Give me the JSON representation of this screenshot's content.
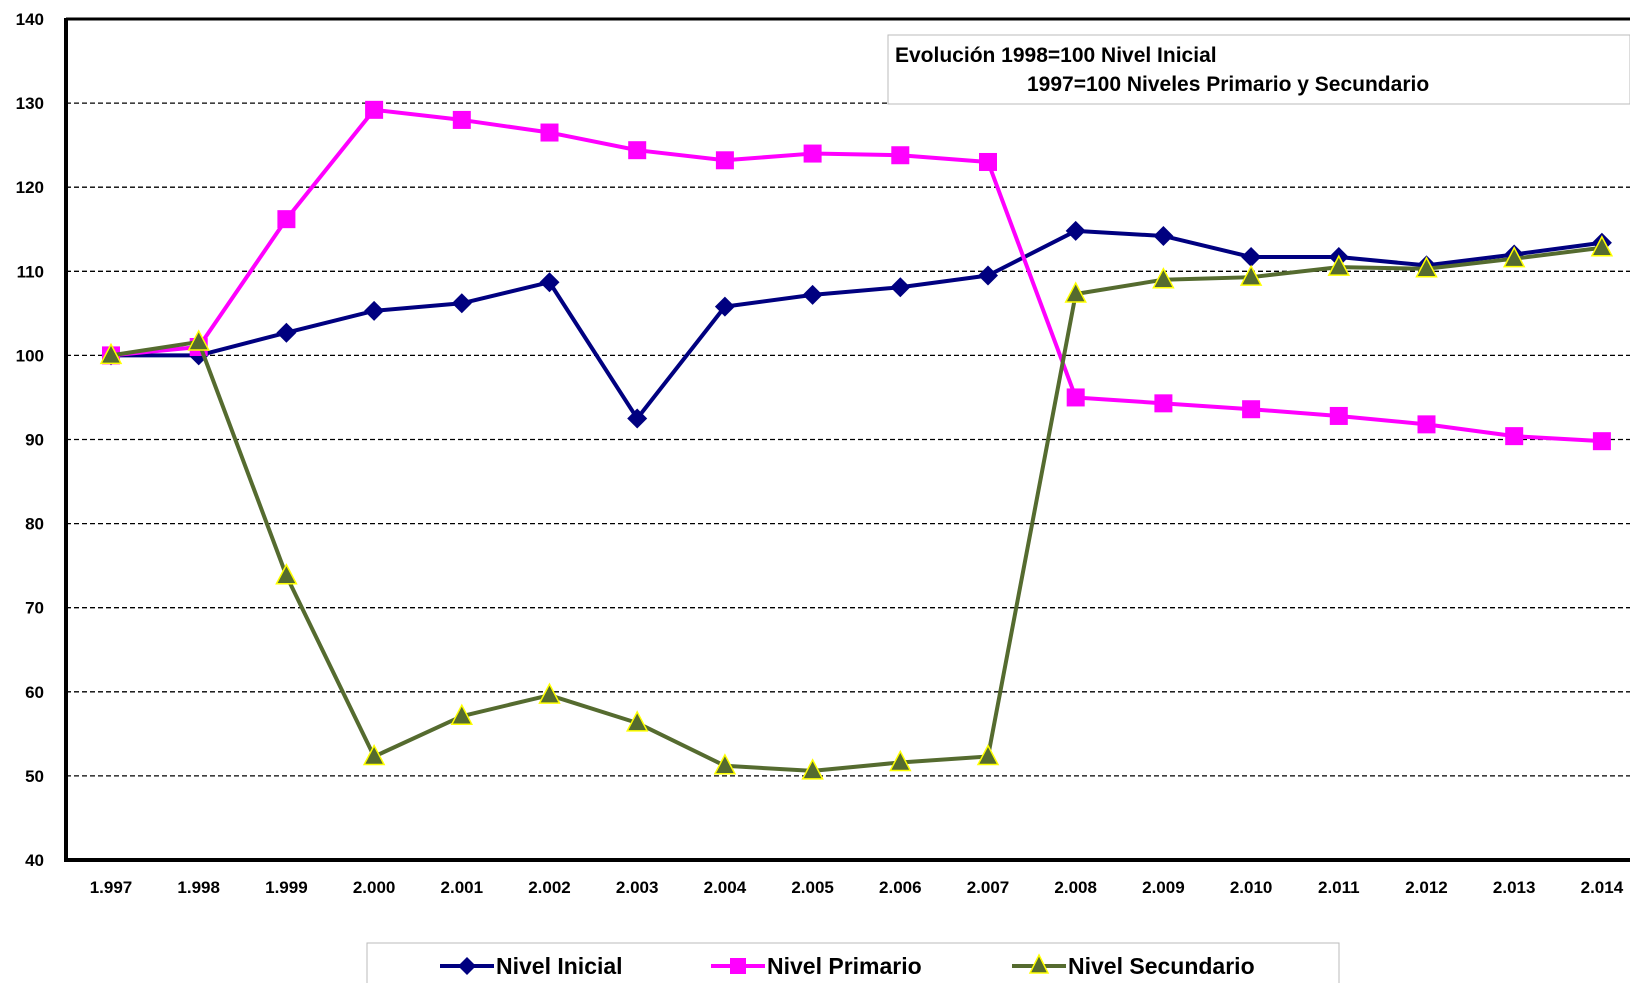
{
  "chart_data": {
    "type": "line",
    "title_lines": [
      "Evolución 1998=100 Nivel Inicial",
      "1997=100 Niveles Primario y Secundario"
    ],
    "xlabel": "",
    "ylabel": "",
    "categories": [
      "1.997",
      "1.998",
      "1.999",
      "2.000",
      "2.001",
      "2.002",
      "2.003",
      "2.004",
      "2.005",
      "2.006",
      "2.007",
      "2.008",
      "2.009",
      "2.010",
      "2.011",
      "2.012",
      "2.013",
      "2.014"
    ],
    "yticks": [
      "40",
      "50",
      "60",
      "70",
      "80",
      "90",
      "100",
      "110",
      "120",
      "130",
      "140"
    ],
    "ylim": [
      40,
      140
    ],
    "grid": "horizontal dashed",
    "legend_position": "bottom",
    "series": [
      {
        "name": "Nivel Inicial",
        "color": "#000080",
        "marker": "diamond",
        "values": [
          100,
          100,
          102.7,
          105.3,
          106.2,
          108.7,
          92.5,
          105.8,
          107.2,
          108.1,
          109.5,
          114.8,
          114.2,
          111.7,
          111.7,
          110.7,
          112.0,
          113.4
        ]
      },
      {
        "name": "Nivel Primario",
        "color": "#ff00ff",
        "marker": "square",
        "values": [
          100,
          101.0,
          116.2,
          129.2,
          128.0,
          126.5,
          124.4,
          123.2,
          124.0,
          123.8,
          123.0,
          95.0,
          94.3,
          93.6,
          92.8,
          91.8,
          90.4,
          89.8
        ]
      },
      {
        "name": "Nivel Secundario",
        "color": "#556b2f",
        "marker": "triangle",
        "values": [
          100,
          101.6,
          73.8,
          52.3,
          57.1,
          59.6,
          56.3,
          51.2,
          50.6,
          51.6,
          52.3,
          107.3,
          109.0,
          109.3,
          110.5,
          110.3,
          111.5,
          112.8
        ]
      }
    ]
  }
}
